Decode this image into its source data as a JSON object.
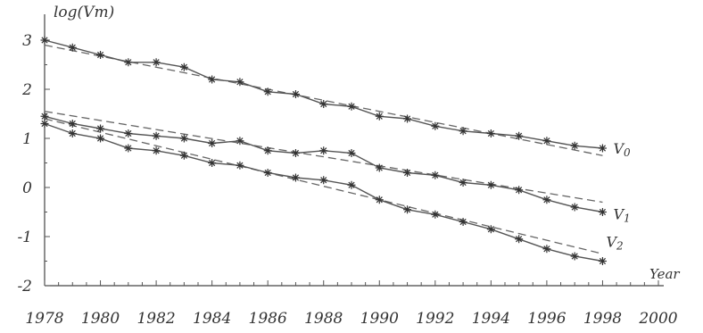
{
  "chart_data": {
    "type": "line",
    "ylabel": "log(Vm)",
    "xlabel": "Year",
    "xlim": [
      1978,
      2000
    ],
    "ylim": [
      -2,
      3.2
    ],
    "x_tick_labels": [
      "1978",
      "1980",
      "1982",
      "1984",
      "1986",
      "1988",
      "1990",
      "1992",
      "1994",
      "1996",
      "1998",
      "2000"
    ],
    "y_tick_labels": [
      "3",
      "2",
      "1",
      "0",
      "-1",
      "-2"
    ],
    "grid": false,
    "series": [
      {
        "name": "V0",
        "name_text": "V",
        "name_sub": "0",
        "x": [
          1978,
          1979,
          1980,
          1981,
          1982,
          1983,
          1984,
          1985,
          1986,
          1987,
          1988,
          1989,
          1990,
          1991,
          1992,
          1993,
          1994,
          1995,
          1996,
          1997,
          1998
        ],
        "values": [
          3.0,
          2.85,
          2.7,
          2.55,
          2.55,
          2.45,
          2.2,
          2.15,
          1.95,
          1.9,
          1.7,
          1.65,
          1.45,
          1.4,
          1.25,
          1.15,
          1.1,
          1.05,
          0.95,
          0.85,
          0.8
        ],
        "trend": [
          2.9,
          0.65
        ]
      },
      {
        "name": "V1",
        "name_text": "V",
        "name_sub": "1",
        "x": [
          1978,
          1979,
          1980,
          1981,
          1982,
          1983,
          1984,
          1985,
          1986,
          1987,
          1988,
          1989,
          1990,
          1991,
          1992,
          1993,
          1994,
          1995,
          1996,
          1997,
          1998
        ],
        "values": [
          1.45,
          1.3,
          1.2,
          1.1,
          1.05,
          1.0,
          0.9,
          0.95,
          0.75,
          0.7,
          0.75,
          0.7,
          0.4,
          0.3,
          0.25,
          0.1,
          0.05,
          -0.05,
          -0.25,
          -0.4,
          -0.5
        ],
        "trend": [
          1.55,
          -0.3
        ]
      },
      {
        "name": "V2",
        "name_text": "V",
        "name_sub": "2",
        "x": [
          1978,
          1979,
          1980,
          1981,
          1982,
          1983,
          1984,
          1985,
          1986,
          1987,
          1988,
          1989,
          1990,
          1991,
          1992,
          1993,
          1994,
          1995,
          1996,
          1997,
          1998
        ],
        "values": [
          1.3,
          1.1,
          1.0,
          0.8,
          0.75,
          0.65,
          0.5,
          0.45,
          0.3,
          0.2,
          0.15,
          0.05,
          -0.25,
          -0.45,
          -0.55,
          -0.7,
          -0.85,
          -1.05,
          -1.25,
          -1.4,
          -1.5
        ],
        "trend": [
          1.4,
          -1.35
        ]
      }
    ]
  }
}
